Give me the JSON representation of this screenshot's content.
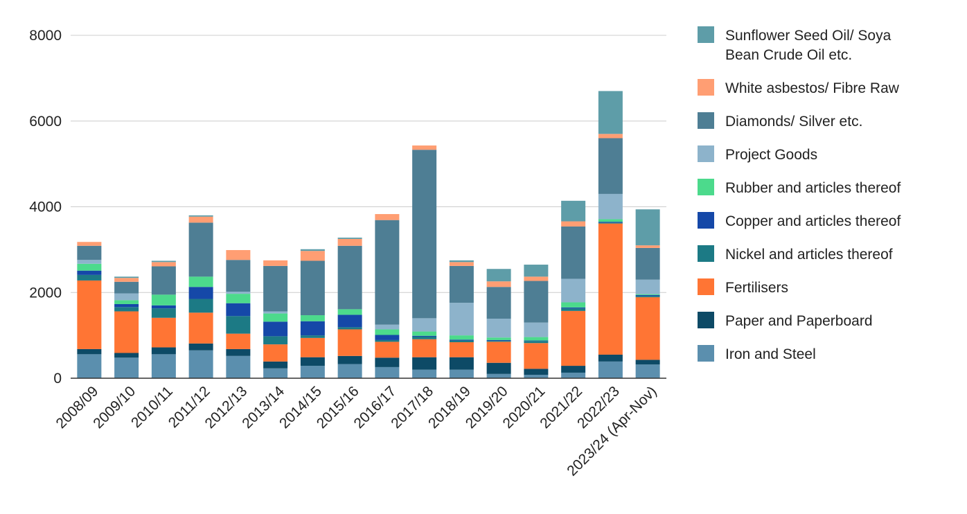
{
  "chart_data": {
    "type": "bar",
    "stacked": true,
    "title": "",
    "xlabel": "",
    "ylabel": "",
    "ylim": [
      0,
      8000
    ],
    "yticks": [
      0,
      2000,
      4000,
      6000,
      8000
    ],
    "grid": true,
    "legend_position": "right",
    "categories": [
      "2008/09",
      "2009/10",
      "2010/11",
      "2011/12",
      "2012/13",
      "2013/14",
      "2014/15",
      "2015/16",
      "2016/17",
      "2017/18",
      "2018/19",
      "2019/20",
      "2020/21",
      "2021/22",
      "2022/23",
      "2023/24 (Apr-Nov)"
    ],
    "series": [
      {
        "name": "Iron and Steel",
        "color": "#5B8FAE",
        "values": [
          560,
          480,
          560,
          650,
          520,
          230,
          290,
          330,
          260,
          200,
          200,
          100,
          80,
          130,
          390,
          320
        ]
      },
      {
        "name": "Paper and Paperboard",
        "color": "#0D4A66",
        "values": [
          120,
          110,
          160,
          160,
          160,
          160,
          200,
          190,
          220,
          290,
          290,
          260,
          140,
          160,
          160,
          110
        ]
      },
      {
        "name": "Fertilisers",
        "color": "#FF7534",
        "values": [
          1600,
          970,
          690,
          720,
          360,
          400,
          450,
          620,
          370,
          420,
          350,
          490,
          600,
          1280,
          3060,
          1460
        ]
      },
      {
        "name": "Nickel and articles thereof",
        "color": "#1C7A85",
        "values": [
          130,
          100,
          220,
          320,
          410,
          190,
          60,
          50,
          40,
          60,
          40,
          20,
          50,
          60,
          20,
          30
        ]
      },
      {
        "name": "Copper and articles thereof",
        "color": "#1548A8",
        "values": [
          100,
          70,
          70,
          280,
          300,
          340,
          330,
          290,
          120,
          20,
          20,
          20,
          10,
          20,
          20,
          20
        ]
      },
      {
        "name": "Rubber and articles thereof",
        "color": "#4CDA8C",
        "values": [
          160,
          90,
          250,
          240,
          220,
          190,
          140,
          130,
          130,
          100,
          100,
          60,
          80,
          120,
          60,
          20
        ]
      },
      {
        "name": "Project Goods",
        "color": "#8DB3CB",
        "values": [
          90,
          160,
          0,
          0,
          50,
          50,
          0,
          0,
          110,
          310,
          760,
          440,
          340,
          550,
          590,
          340
        ]
      },
      {
        "name": "Diamonds/ Silver etc.",
        "color": "#4E7E94",
        "values": [
          330,
          270,
          660,
          1260,
          740,
          1060,
          1270,
          1480,
          2440,
          3930,
          860,
          740,
          970,
          1220,
          1300,
          740
        ]
      },
      {
        "name": "White asbestos/ Fibre Raw",
        "color": "#FF9E73",
        "values": [
          90,
          90,
          100,
          140,
          230,
          130,
          230,
          160,
          140,
          100,
          90,
          130,
          100,
          120,
          100,
          60
        ]
      },
      {
        "name": "Sunflower Seed Oil/ Soya Bean Crude Oil etc.",
        "color": "#5E9DA8",
        "values": [
          0,
          30,
          30,
          30,
          0,
          0,
          40,
          30,
          0,
          0,
          40,
          290,
          280,
          480,
          1000,
          840
        ]
      }
    ]
  },
  "legend": {
    "order": [
      9,
      8,
      7,
      6,
      5,
      4,
      3,
      2,
      1,
      0
    ],
    "label_lines": {
      "Sunflower Seed Oil/ Soya Bean Crude Oil etc.": [
        "Sunflower Seed Oil/ Soya",
        "Bean Crude Oil etc."
      ]
    }
  },
  "style": {
    "grid_color": "#CCCCCC",
    "axis_color": "#333333",
    "text_color": "#222222"
  }
}
